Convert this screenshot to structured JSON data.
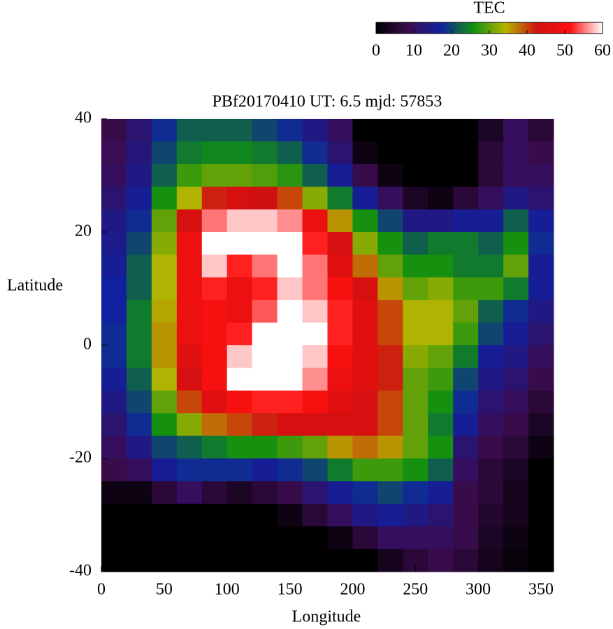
{
  "chart_data": {
    "type": "heatmap",
    "title": "PBf20170410  UT: 6.5  mjd: 57853",
    "xlabel": "Longitude",
    "ylabel": "Latitude",
    "colorbar_label": "TEC",
    "x": [
      10,
      30,
      50,
      70,
      90,
      110,
      130,
      150,
      170,
      190,
      210,
      230,
      250,
      270,
      290,
      310,
      330,
      350
    ],
    "y": [
      38,
      34,
      30,
      26,
      22,
      18,
      14,
      10,
      6,
      2,
      -2,
      -6,
      -10,
      -14,
      -18,
      -22,
      -26,
      -30,
      -34,
      -38
    ],
    "z": [
      [
        8,
        12,
        18,
        22,
        22,
        22,
        20,
        18,
        14,
        10,
        0,
        0,
        0,
        0,
        0,
        4,
        10,
        6
      ],
      [
        9,
        13,
        20,
        24,
        25,
        25,
        24,
        22,
        18,
        12,
        2,
        0,
        0,
        0,
        0,
        6,
        10,
        8
      ],
      [
        10,
        14,
        22,
        28,
        30,
        30,
        29,
        27,
        22,
        16,
        8,
        2,
        0,
        0,
        0,
        6,
        10,
        10
      ],
      [
        12,
        16,
        26,
        34,
        42,
        44,
        43,
        40,
        32,
        24,
        16,
        10,
        4,
        2,
        6,
        10,
        14,
        12
      ],
      [
        14,
        18,
        30,
        44,
        55,
        58,
        58,
        56,
        48,
        36,
        26,
        20,
        14,
        14,
        16,
        16,
        22,
        16
      ],
      [
        15,
        20,
        32,
        48,
        60,
        60,
        60,
        60,
        52,
        44,
        32,
        26,
        22,
        24,
        24,
        22,
        26,
        18
      ],
      [
        16,
        22,
        34,
        48,
        58,
        52,
        55,
        60,
        55,
        46,
        38,
        30,
        26,
        26,
        24,
        24,
        30,
        16
      ],
      [
        17,
        22,
        34,
        48,
        52,
        48,
        52,
        58,
        55,
        50,
        44,
        36,
        30,
        32,
        28,
        28,
        24,
        16
      ],
      [
        17,
        24,
        35,
        48,
        50,
        48,
        54,
        60,
        58,
        52,
        46,
        40,
        34,
        34,
        30,
        22,
        18,
        14
      ],
      [
        18,
        24,
        36,
        48,
        50,
        52,
        60,
        60,
        60,
        52,
        46,
        40,
        34,
        34,
        28,
        20,
        16,
        12
      ],
      [
        18,
        24,
        36,
        46,
        50,
        58,
        60,
        60,
        58,
        50,
        46,
        42,
        32,
        30,
        24,
        16,
        14,
        10
      ],
      [
        16,
        22,
        34,
        44,
        50,
        60,
        60,
        60,
        56,
        48,
        46,
        42,
        30,
        28,
        20,
        14,
        12,
        8
      ],
      [
        14,
        20,
        30,
        40,
        46,
        50,
        52,
        52,
        50,
        46,
        44,
        40,
        30,
        26,
        18,
        12,
        10,
        6
      ],
      [
        12,
        18,
        26,
        32,
        38,
        40,
        42,
        44,
        44,
        44,
        44,
        40,
        30,
        24,
        16,
        10,
        8,
        4
      ],
      [
        10,
        14,
        20,
        22,
        24,
        26,
        26,
        28,
        30,
        36,
        38,
        36,
        30,
        26,
        12,
        8,
        6,
        2
      ],
      [
        8,
        10,
        16,
        18,
        18,
        18,
        16,
        18,
        20,
        24,
        28,
        28,
        26,
        22,
        10,
        6,
        4,
        0
      ],
      [
        2,
        2,
        6,
        10,
        6,
        4,
        6,
        8,
        12,
        16,
        18,
        20,
        18,
        16,
        8,
        6,
        3,
        0
      ],
      [
        0,
        0,
        0,
        0,
        0,
        0,
        0,
        2,
        6,
        10,
        14,
        16,
        14,
        12,
        8,
        5,
        3,
        0
      ],
      [
        0,
        0,
        0,
        0,
        0,
        0,
        0,
        0,
        0,
        2,
        6,
        10,
        10,
        10,
        8,
        4,
        2,
        0
      ],
      [
        0,
        0,
        0,
        0,
        0,
        0,
        0,
        0,
        0,
        0,
        0,
        3,
        6,
        8,
        6,
        3,
        1,
        0
      ]
    ],
    "xlim": [
      0,
      360
    ],
    "ylim": [
      -40,
      40
    ],
    "zlim": [
      0,
      60
    ],
    "xticks": [
      0,
      50,
      100,
      150,
      200,
      250,
      300,
      350
    ],
    "yticks": [
      -40,
      -20,
      0,
      20,
      40
    ],
    "zticks": [
      0,
      10,
      20,
      30,
      40,
      50,
      60
    ],
    "colormap": [
      "#000000",
      "#3c0c50",
      "#1020a0",
      "#109010",
      "#b4b400",
      "#d01010",
      "#ff1010",
      "#ffffff"
    ]
  }
}
